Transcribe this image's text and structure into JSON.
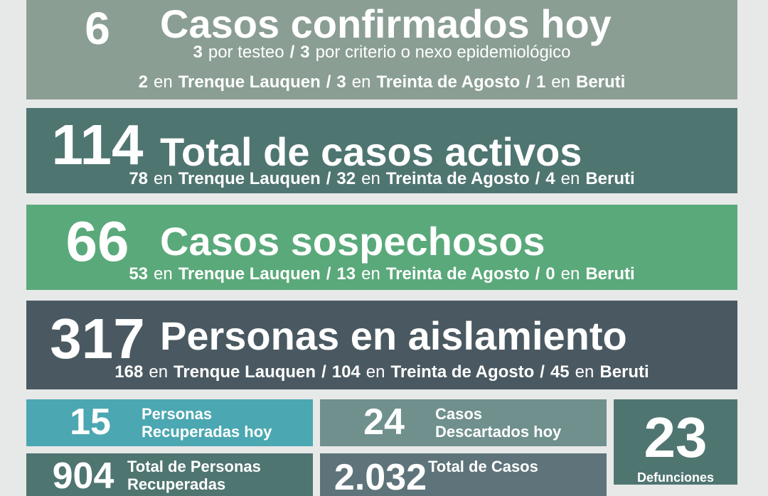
{
  "panels": [
    {
      "number": "6",
      "title": "Casos confirmados hoy",
      "lines": [
        [
          {
            "t": "3",
            "b": true
          },
          {
            "t": "por testeo"
          },
          {
            "t": "/",
            "b": true
          },
          {
            "t": "3",
            "b": true
          },
          {
            "t": "por criterio o nexo epidemiológico"
          }
        ],
        [
          {
            "t": "2",
            "b": true
          },
          {
            "t": "en"
          },
          {
            "t": "Trenque Lauquen",
            "b": true
          },
          {
            "t": "/",
            "b": true
          },
          {
            "t": "3",
            "b": true
          },
          {
            "t": "en"
          },
          {
            "t": "Treinta de Agosto",
            "b": true
          },
          {
            "t": "/",
            "b": true
          },
          {
            "t": "1",
            "b": true
          },
          {
            "t": "en"
          },
          {
            "t": "Beruti",
            "b": true
          }
        ]
      ]
    },
    {
      "number": "114",
      "title": "Total de casos activos",
      "lines": [
        [
          {
            "t": "78",
            "b": true
          },
          {
            "t": "en"
          },
          {
            "t": "Trenque Lauquen",
            "b": true
          },
          {
            "t": "/",
            "b": true
          },
          {
            "t": "32",
            "b": true
          },
          {
            "t": "en"
          },
          {
            "t": "Treinta de Agosto",
            "b": true
          },
          {
            "t": "/",
            "b": true
          },
          {
            "t": "4",
            "b": true
          },
          {
            "t": "en"
          },
          {
            "t": "Beruti",
            "b": true
          }
        ]
      ]
    },
    {
      "number": "66",
      "title": "Casos sospechosos",
      "lines": [
        [
          {
            "t": "53",
            "b": true
          },
          {
            "t": "en"
          },
          {
            "t": "Trenque Lauquen",
            "b": true
          },
          {
            "t": "/",
            "b": true
          },
          {
            "t": "13",
            "b": true
          },
          {
            "t": "en"
          },
          {
            "t": "Treinta de Agosto",
            "b": true
          },
          {
            "t": "/",
            "b": true
          },
          {
            "t": "0",
            "b": true
          },
          {
            "t": "en"
          },
          {
            "t": "Beruti",
            "b": true
          }
        ]
      ]
    },
    {
      "number": "317",
      "title": "Personas en aislamiento",
      "lines": [
        [
          {
            "t": "168",
            "b": true
          },
          {
            "t": "en"
          },
          {
            "t": "Trenque Lauquen",
            "b": true
          },
          {
            "t": "/",
            "b": true
          },
          {
            "t": "104",
            "b": true
          },
          {
            "t": "en"
          },
          {
            "t": "Treinta de Agosto",
            "b": true
          },
          {
            "t": "/",
            "b": true
          },
          {
            "t": "45",
            "b": true
          },
          {
            "t": "en"
          },
          {
            "t": "Beruti",
            "b": true
          }
        ]
      ]
    }
  ],
  "stats": [
    {
      "number": "15",
      "label": [
        "Personas",
        "Recuperadas hoy"
      ]
    },
    {
      "number": "24",
      "label": [
        "Casos",
        "Descartados hoy"
      ]
    },
    {
      "number": "23",
      "label": [
        "Defunciones"
      ]
    },
    {
      "number": "904",
      "label": [
        "Total de Personas",
        "Recuperadas"
      ]
    },
    {
      "number": "2.032",
      "label": [
        "Total de Casos"
      ]
    }
  ]
}
